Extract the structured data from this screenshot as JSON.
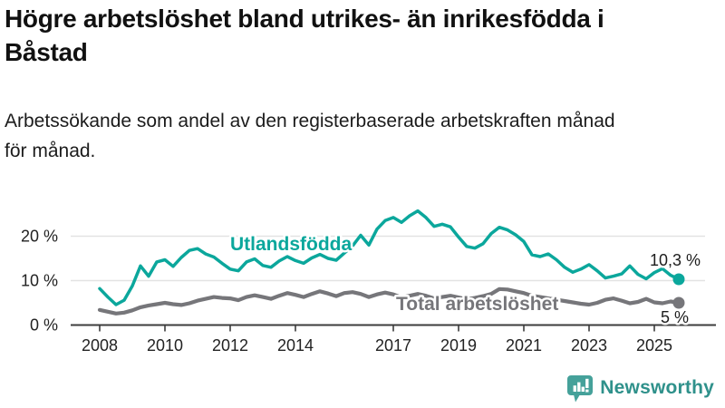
{
  "header": {
    "title_lines": [
      "Högre arbetslöshet bland utrikes- än inrikesfödda i",
      "Båstad"
    ],
    "subtitle_lines": [
      "Arbetssökande som andel av den registerbaserade arbetskraften månad",
      "för månad."
    ]
  },
  "chart_data": {
    "type": "line",
    "title": "Högre arbetslöshet bland utrikes- än inrikesfödda i Båstad",
    "subtitle": "Arbetssökande som andel av den registerbaserade arbetskraften månad för månad.",
    "xlabel": "",
    "ylabel": "",
    "ylim": [
      0,
      27
    ],
    "xlim": [
      2008,
      2026
    ],
    "grid": "horizontal",
    "legend_position": "inline-labels",
    "x_start": 2008.0,
    "x_step": 0.25,
    "x_ticks": [
      2008,
      2010,
      2012,
      2014,
      2017,
      2019,
      2021,
      2023,
      2025
    ],
    "y_ticks": [
      {
        "value": 0,
        "label": "0 %"
      },
      {
        "value": 10,
        "label": "10 %"
      },
      {
        "value": 20,
        "label": "20 %"
      }
    ],
    "series": [
      {
        "name": "Utlandsfödda",
        "color": "#0ba79c",
        "end_label": "10,3 %",
        "end_value": 10.3,
        "values": [
          8.2,
          6.3,
          4.6,
          5.6,
          8.8,
          13.3,
          11.0,
          14.2,
          14.7,
          13.2,
          15.2,
          16.8,
          17.2,
          16.0,
          15.3,
          13.9,
          12.6,
          12.2,
          14.2,
          14.9,
          13.4,
          13.0,
          14.4,
          15.4,
          14.5,
          13.9,
          15.1,
          15.9,
          15.0,
          14.6,
          16.2,
          17.8,
          20.2,
          18.0,
          21.6,
          23.5,
          24.2,
          23.1,
          24.6,
          25.7,
          24.2,
          22.2,
          22.7,
          22.1,
          19.8,
          17.7,
          17.3,
          18.3,
          20.6,
          22.0,
          21.4,
          20.3,
          18.8,
          15.8,
          15.4,
          16.0,
          14.7,
          13.0,
          11.9,
          12.6,
          13.6,
          12.2,
          10.6,
          11.0,
          11.5,
          13.3,
          11.4,
          10.4,
          11.8,
          12.7,
          11.2,
          10.3
        ]
      },
      {
        "name": "Total arbetslöshet",
        "color": "#76767a",
        "end_label": "5 %",
        "end_value": 5.0,
        "values": [
          3.4,
          3.0,
          2.6,
          2.8,
          3.3,
          4.0,
          4.4,
          4.7,
          5.0,
          4.7,
          4.5,
          4.9,
          5.5,
          5.9,
          6.3,
          6.1,
          6.0,
          5.6,
          6.3,
          6.7,
          6.3,
          5.9,
          6.6,
          7.2,
          6.8,
          6.3,
          7.0,
          7.6,
          7.1,
          6.5,
          7.2,
          7.4,
          7.0,
          6.3,
          6.9,
          7.3,
          6.9,
          6.2,
          6.6,
          7.0,
          6.6,
          6.0,
          6.3,
          6.6,
          6.2,
          5.8,
          6.1,
          6.5,
          7.0,
          8.1,
          8.0,
          7.6,
          7.2,
          6.6,
          6.3,
          6.0,
          5.7,
          5.4,
          5.1,
          4.8,
          4.6,
          5.0,
          5.7,
          6.0,
          5.5,
          4.9,
          5.2,
          5.9,
          5.1,
          4.9,
          5.3,
          5.0
        ]
      }
    ],
    "colors": {
      "grid": "#e3e3e3",
      "axis": "#3c3c3c",
      "tick_label": "#222222",
      "value_label": "#1d1d1d"
    }
  },
  "footer": {
    "brand": "Newsworthy",
    "brand_color": "#2f918b",
    "icon_color": "#45a19a",
    "icon": "bar-chart-speech-bubble-icon"
  }
}
